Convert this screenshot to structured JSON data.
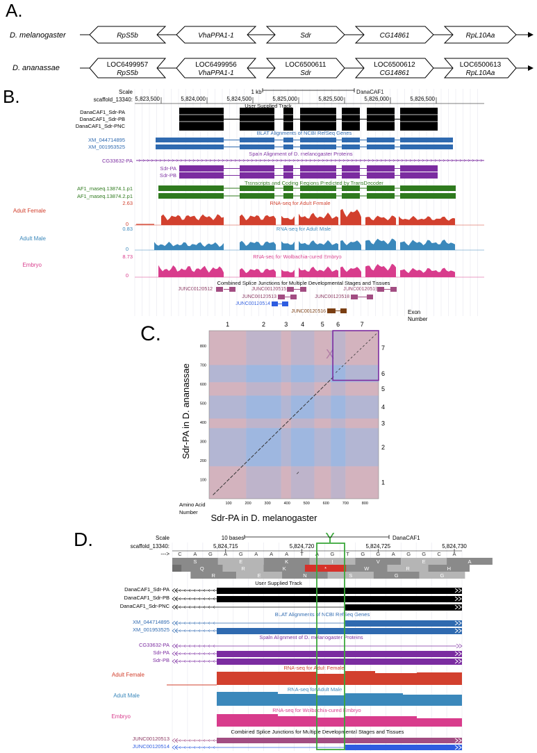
{
  "panels": {
    "a": "A.",
    "b": "B.",
    "c": "C.",
    "d": "D."
  },
  "panel_a": {
    "species": [
      "D. melanogaster",
      "D. ananassae"
    ],
    "mel_genes": [
      "RpS5b",
      "VhaPPA1-1",
      "Sdr",
      "CG14861",
      "RpL10Aa"
    ],
    "ana_locs": [
      "LOC6499957",
      "LOC6499956",
      "LOC6500611",
      "LOC6500612",
      "LOC6500613"
    ],
    "ana_genes": [
      "RpS5b",
      "VhaPPA1-1",
      "Sdr",
      "CG14861",
      "RpL10Aa"
    ]
  },
  "panel_b": {
    "scale_label": "Scale",
    "scale_value": "1 kb",
    "assembly": "DanaCAF1",
    "coord_label": "scaffold_13340:",
    "coords": [
      "5,823,500",
      "5,824,000",
      "5,824,500",
      "5,825,000",
      "5,825,500",
      "5,826,000",
      "5,826,500"
    ],
    "titles": {
      "user": "User Supplied Track",
      "blat": "BLAT Alignments of NCBI RefSeq Genes",
      "spaln": "Spaln Alignment of D. melanogaster Proteins",
      "transdecoder": "Transcripts and Coding Regions Predicted by TransDecoder",
      "rna_female": "RNA-seq for Adult Female",
      "rna_male": "RNA-seq for Adult Male",
      "rna_embryo": "RNA-seq for Wolbachia-cured Embryo",
      "junctions": "Combined Splice Junctions for Multiple Developmental Stages and Tissues"
    },
    "user_labels": [
      "DanaCAF1_Sdr-PA",
      "DanaCAF1_Sdr-PB",
      "DanaCAF1_Sdr-PNC"
    ],
    "blat_labels": [
      "XM_044714895",
      "XM_001953525"
    ],
    "spaln_labels": [
      "CG33632-PA",
      "Sdr-PA",
      "Sdr-PB"
    ],
    "td_labels": [
      "AF1_maseq.13874.1.p1",
      "AF1_maseq.13874.2.p1"
    ],
    "rna": [
      {
        "name": "Adult Female",
        "max": "2.63",
        "min": "0"
      },
      {
        "name": "Adult Male",
        "max": "0.83",
        "min": "0"
      },
      {
        "name": "Embryo",
        "max": "8.73",
        "min": "0"
      }
    ],
    "junctions": [
      "JUNC00120512",
      "JUNC00120515",
      "JUNC00120519",
      "JUNC00120513",
      "JUNC00120518",
      "JUNC00120514",
      "JUNC00120516"
    ]
  },
  "panel_c": {
    "exon_header": "Exon",
    "exon_header2": "Number",
    "x_exons": [
      "1",
      "2",
      "3",
      "4",
      "5",
      "6",
      "7"
    ],
    "y_exons": [
      "1",
      "2",
      "3",
      "4",
      "5",
      "6",
      "7"
    ],
    "x_ticks": [
      "100",
      "200",
      "300",
      "400",
      "500",
      "600",
      "700",
      "800"
    ],
    "y_ticks": [
      "100",
      "200",
      "300",
      "400",
      "500",
      "600",
      "700",
      "800"
    ],
    "box_label": "X",
    "xlabel": "Sdr-PA in D. melanogaster",
    "ylabel": "Sdr-PA in D. ananassae",
    "corner_label1": "Amino Acid",
    "corner_label2": "Number"
  },
  "panel_d": {
    "scale_label": "Scale",
    "scale_value": "10 bases",
    "assembly": "DanaCAF1",
    "coord_label": "scaffold_13340:",
    "arrow": "--->",
    "coords": [
      "5,824,715",
      "5,824,720",
      "5,824,725",
      "5,824,730"
    ],
    "y_label": "Y",
    "bases": [
      "C",
      "A",
      "G",
      "A",
      "G",
      "A",
      "A",
      "A",
      "T",
      "A",
      "G",
      "T",
      "G",
      "G",
      "A",
      "G",
      "G",
      "C",
      "A"
    ],
    "frame1": [
      "S",
      "E",
      "K",
      "I",
      "V",
      "E",
      "A"
    ],
    "frame2": [
      "Q",
      "R",
      "K",
      "*",
      "W",
      "R",
      "H"
    ],
    "frame3": [
      "R",
      "E",
      "N",
      "S",
      "G",
      "G"
    ],
    "titles": {
      "user": "User Supplied Track",
      "blat": "BLAT Alignments of NCBI RefSeq Genes",
      "spaln": "Spaln Alignment of D. melanogaster Proteins",
      "rna_female": "RNA-seq for Adult Female",
      "rna_male": "RNA-seq for Adult Male",
      "rna_embryo": "RNA-seq for Wolbachia-cured Embryo",
      "junctions": "Combined Splice Junctions for Multiple Developmental Stages and Tissues"
    },
    "user_labels": [
      "DanaCAF1_Sdr-PA",
      "DanaCAF1_Sdr-PB",
      "DanaCAF1_Sdr-PNC"
    ],
    "blat_labels": [
      "XM_044714895",
      "XM_001953525"
    ],
    "spaln_labels": [
      "CG33632-PA",
      "Sdr-PA",
      "Sdr-PB"
    ],
    "rna_names": [
      "Adult Female",
      "Adult Male",
      "Embryo"
    ],
    "junction_labels": [
      "JUNC00120513",
      "JUNC00120514"
    ]
  },
  "colors": {
    "black": "#000000",
    "blue": "#2f6ab0",
    "purple": "#7b2ca0",
    "green": "#2f7a1e",
    "female": "#d2402e",
    "male": "#3b88bb",
    "embryo": "#d83c8c",
    "frame_stop": "#d6312a",
    "dot_red": "#c59aa8",
    "dot_blue": "#7f9fd6",
    "highlight_green": "#3aa73a"
  }
}
